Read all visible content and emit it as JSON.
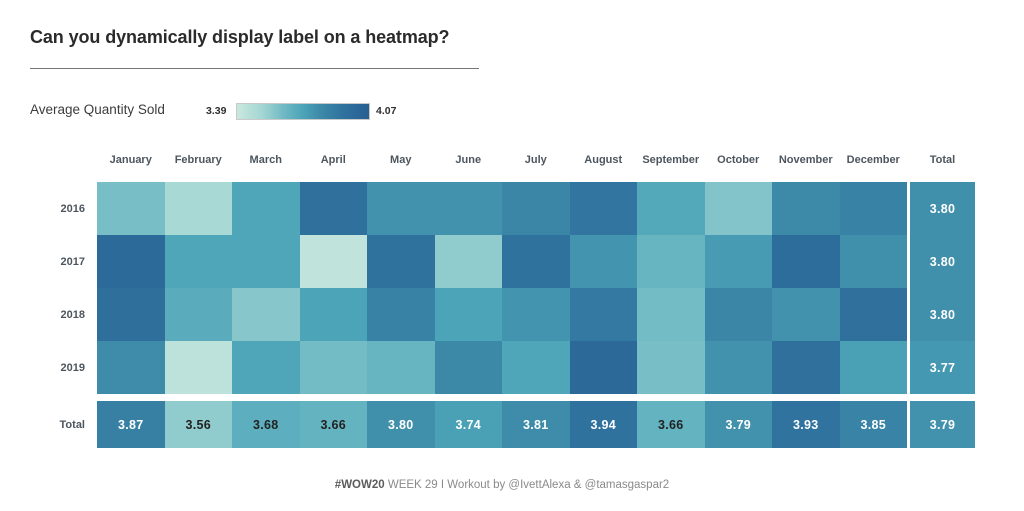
{
  "title": {
    "text": "Can you dynamically display label on a heatmap?"
  },
  "legend": {
    "label": "Average Quantity Sold",
    "min": "3.39",
    "max": "4.07"
  },
  "footer": {
    "hashtag": "#WOW20",
    "text": " WEEK 29 I Workout by @IvettAlexa & @tamasgaspar2"
  },
  "chart_data": {
    "type": "heatmap",
    "title": "Can you dynamically display label on a heatmap?",
    "legend_title": "Average Quantity Sold",
    "legend_position": "top-left",
    "columns": [
      "January",
      "February",
      "March",
      "April",
      "May",
      "June",
      "July",
      "August",
      "September",
      "October",
      "November",
      "December"
    ],
    "rows": [
      "2016",
      "2017",
      "2018",
      "2019"
    ],
    "row_header_total": "Total",
    "col_header_total": "Total",
    "series": [
      {
        "name": "2016",
        "values": [
          3.61,
          3.5,
          3.72,
          3.95,
          3.79,
          3.79,
          3.84,
          3.92,
          3.71,
          3.59,
          3.82,
          3.86
        ],
        "row_total": 3.8
      },
      {
        "name": "2017",
        "values": [
          3.99,
          3.72,
          3.72,
          3.42,
          3.94,
          3.56,
          3.94,
          3.78,
          3.65,
          3.76,
          3.97,
          3.8
        ],
        "row_total": 3.8
      },
      {
        "name": "2018",
        "values": [
          3.96,
          3.69,
          3.58,
          3.73,
          3.86,
          3.73,
          3.78,
          3.9,
          3.62,
          3.84,
          3.79,
          3.95
        ],
        "row_total": 3.8
      },
      {
        "name": "2019",
        "values": [
          3.81,
          3.43,
          3.72,
          3.62,
          3.65,
          3.83,
          3.72,
          4.0,
          3.61,
          3.79,
          3.95,
          3.74
        ],
        "row_total": 3.77
      }
    ],
    "column_totals": [
      3.87,
      3.56,
      3.68,
      3.66,
      3.8,
      3.74,
      3.81,
      3.94,
      3.66,
      3.79,
      3.93,
      3.85
    ],
    "grand_total": 3.79,
    "labels_shown_on": "total row and total column only",
    "color_scale": {
      "min": 3.39,
      "max": 4.07,
      "stops": [
        [
          3.39,
          "#c9e8de"
        ],
        [
          3.52,
          "#a3d6d3"
        ],
        [
          3.63,
          "#6fb9c4"
        ],
        [
          3.73,
          "#4ca4b8"
        ],
        [
          3.81,
          "#3e8ca9"
        ],
        [
          3.93,
          "#30739f"
        ],
        [
          4.07,
          "#275f92"
        ]
      ],
      "dark_label_threshold": 3.71,
      "dark_label_color": "#222222",
      "light_label_color": "#ffffff"
    }
  }
}
